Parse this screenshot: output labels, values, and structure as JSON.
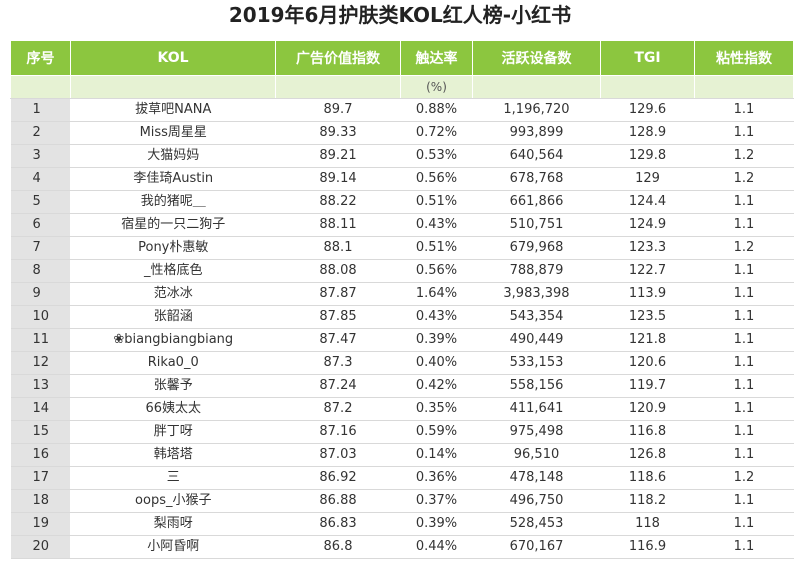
{
  "title": "2019年6月护肤类KOL红人榜-小红书",
  "columns": [
    "序号",
    "KOL",
    "广告价值指数",
    "触达率",
    "活跃设备数",
    "TGI",
    "粘性指数"
  ],
  "unit_row": [
    "",
    "",
    "",
    "(%)",
    "",
    "",
    ""
  ],
  "rows": [
    [
      "1",
      "拔草吧NANA",
      "89.7",
      "0.88%",
      "1,196,720",
      "129.6",
      "1.1"
    ],
    [
      "2",
      "Miss周星星",
      "89.33",
      "0.72%",
      "993,899",
      "128.9",
      "1.1"
    ],
    [
      "3",
      "大猫妈妈",
      "89.21",
      "0.53%",
      "640,564",
      "129.8",
      "1.2"
    ],
    [
      "4",
      "李佳琦Austin",
      "89.14",
      "0.56%",
      "678,768",
      "129",
      "1.2"
    ],
    [
      "5",
      "我的猪呢＿",
      "88.22",
      "0.51%",
      "661,866",
      "124.4",
      "1.1"
    ],
    [
      "6",
      "宿星的一只二狗子",
      "88.11",
      "0.43%",
      "510,751",
      "124.9",
      "1.1"
    ],
    [
      "7",
      "Pony朴惠敏",
      "88.1",
      "0.51%",
      "679,968",
      "123.3",
      "1.2"
    ],
    [
      "8",
      "_性格底色",
      "88.08",
      "0.56%",
      "788,879",
      "122.7",
      "1.1"
    ],
    [
      "9",
      "范冰冰",
      "87.87",
      "1.64%",
      "3,983,398",
      "113.9",
      "1.1"
    ],
    [
      "10",
      "张韶涵",
      "87.85",
      "0.43%",
      "543,354",
      "123.5",
      "1.1"
    ],
    [
      "11",
      "❀biangbiangbiang",
      "87.47",
      "0.39%",
      "490,449",
      "121.8",
      "1.1"
    ],
    [
      "12",
      "Rika0_0",
      "87.3",
      "0.40%",
      "533,153",
      "120.6",
      "1.1"
    ],
    [
      "13",
      "张馨予",
      "87.24",
      "0.42%",
      "558,156",
      "119.7",
      "1.1"
    ],
    [
      "14",
      "66姨太太",
      "87.2",
      "0.35%",
      "411,641",
      "120.9",
      "1.1"
    ],
    [
      "15",
      "胖丁呀",
      "87.16",
      "0.59%",
      "975,498",
      "116.8",
      "1.1"
    ],
    [
      "16",
      "韩塔塔",
      "87.03",
      "0.14%",
      "96,510",
      "126.8",
      "1.1"
    ],
    [
      "17",
      "三",
      "86.92",
      "0.36%",
      "478,148",
      "118.6",
      "1.2"
    ],
    [
      "18",
      "oops_小猴子",
      "86.88",
      "0.37%",
      "496,750",
      "118.2",
      "1.1"
    ],
    [
      "19",
      "梨雨呀",
      "86.83",
      "0.39%",
      "528,453",
      "118",
      "1.1"
    ],
    [
      "20",
      "小阿昏啊",
      "86.8",
      "0.44%",
      "670,167",
      "116.9",
      "1.1"
    ]
  ]
}
